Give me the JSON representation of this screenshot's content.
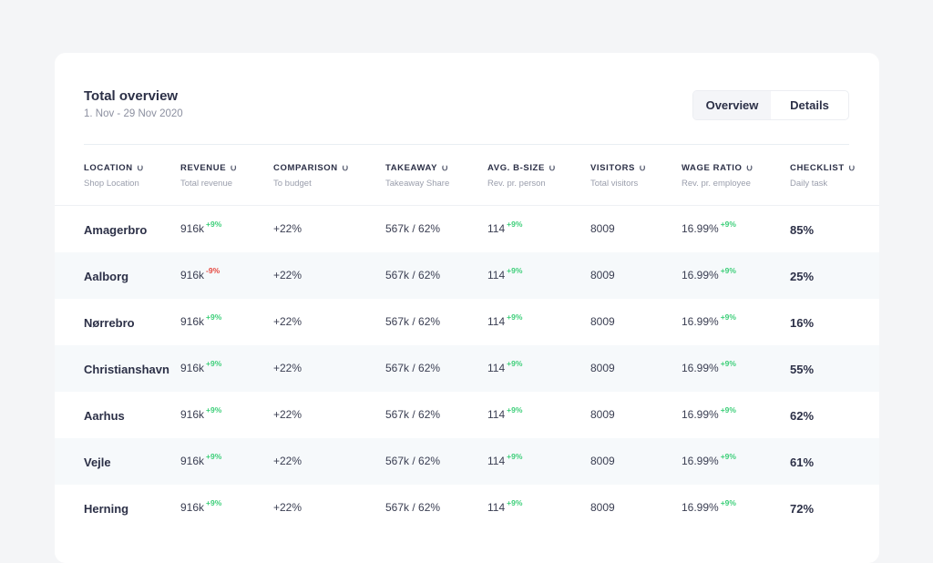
{
  "header": {
    "title": "Total overview",
    "date_range": "1. Nov - 29 Nov 2020"
  },
  "toggle": {
    "options": [
      "Overview",
      "Details"
    ],
    "active": "Overview"
  },
  "colors": {
    "positive": "#3ecf7a",
    "negative": "#e5483f"
  },
  "columns": [
    {
      "label": "LOCATION",
      "sub": "Shop Location"
    },
    {
      "label": "REVENUE",
      "sub": "Total revenue"
    },
    {
      "label": "COMPARISON",
      "sub": "To budget"
    },
    {
      "label": "TAKEAWAY",
      "sub": "Takeaway Share"
    },
    {
      "label": "AVG. B-SIZE",
      "sub": "Rev. pr. person"
    },
    {
      "label": "VISITORS",
      "sub": "Total visitors"
    },
    {
      "label": "WAGE RATIO",
      "sub": "Rev. pr. employee"
    },
    {
      "label": "CHECKLIST",
      "sub": "Daily task"
    }
  ],
  "sort_icon": "sort-down-icon",
  "rows": [
    {
      "location": "Amagerbro",
      "revenue": "916k",
      "revenue_delta": "+9%",
      "comparison": "+22%",
      "takeaway": "567k / 62%",
      "avg_bsize": "114",
      "avg_bsize_delta": "+9%",
      "visitors": "8009",
      "wage_ratio": "16.99%",
      "wage_ratio_delta": "+9%",
      "checklist": "85%"
    },
    {
      "location": "Aalborg",
      "revenue": "916k",
      "revenue_delta": "-9%",
      "comparison": "+22%",
      "takeaway": "567k / 62%",
      "avg_bsize": "114",
      "avg_bsize_delta": "+9%",
      "visitors": "8009",
      "wage_ratio": "16.99%",
      "wage_ratio_delta": "+9%",
      "checklist": "25%"
    },
    {
      "location": "Nørrebro",
      "revenue": "916k",
      "revenue_delta": "+9%",
      "comparison": "+22%",
      "takeaway": "567k / 62%",
      "avg_bsize": "114",
      "avg_bsize_delta": "+9%",
      "visitors": "8009",
      "wage_ratio": "16.99%",
      "wage_ratio_delta": "+9%",
      "checklist": "16%"
    },
    {
      "location": "Christianshavn",
      "revenue": "916k",
      "revenue_delta": "+9%",
      "comparison": "+22%",
      "takeaway": "567k / 62%",
      "avg_bsize": "114",
      "avg_bsize_delta": "+9%",
      "visitors": "8009",
      "wage_ratio": "16.99%",
      "wage_ratio_delta": "+9%",
      "checklist": "55%"
    },
    {
      "location": "Aarhus",
      "revenue": "916k",
      "revenue_delta": "+9%",
      "comparison": "+22%",
      "takeaway": "567k / 62%",
      "avg_bsize": "114",
      "avg_bsize_delta": "+9%",
      "visitors": "8009",
      "wage_ratio": "16.99%",
      "wage_ratio_delta": "+9%",
      "checklist": "62%"
    },
    {
      "location": "Vejle",
      "revenue": "916k",
      "revenue_delta": "+9%",
      "comparison": "+22%",
      "takeaway": "567k / 62%",
      "avg_bsize": "114",
      "avg_bsize_delta": "+9%",
      "visitors": "8009",
      "wage_ratio": "16.99%",
      "wage_ratio_delta": "+9%",
      "checklist": "61%"
    },
    {
      "location": "Herning",
      "revenue": "916k",
      "revenue_delta": "+9%",
      "comparison": "+22%",
      "takeaway": "567k / 62%",
      "avg_bsize": "114",
      "avg_bsize_delta": "+9%",
      "visitors": "8009",
      "wage_ratio": "16.99%",
      "wage_ratio_delta": "+9%",
      "checklist": "72%"
    }
  ]
}
